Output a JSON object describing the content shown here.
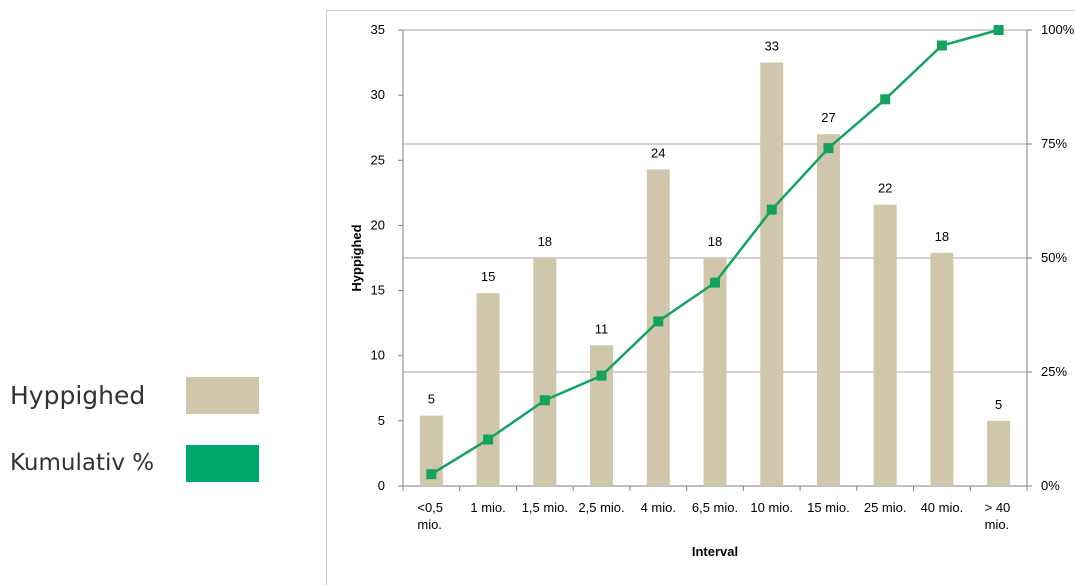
{
  "legend": {
    "bar_label": "Hyppighed",
    "line_label": "Kumulativ %",
    "bar_color": "#cfc6ab",
    "line_color": "#00a86b"
  },
  "chart_data": {
    "type": "bar",
    "categories": [
      [
        "<0,5",
        "mio."
      ],
      [
        "1 mio."
      ],
      [
        "1,5 mio."
      ],
      [
        "2,5 mio."
      ],
      [
        "4 mio."
      ],
      [
        "6,5 mio."
      ],
      [
        "10 mio."
      ],
      [
        "15 mio."
      ],
      [
        "25 mio."
      ],
      [
        "40 mio."
      ],
      [
        "> 40",
        "mio."
      ]
    ],
    "series": [
      {
        "name": "Hyppighed",
        "type": "bar",
        "axis": "left",
        "values": [
          5.4,
          14.8,
          17.5,
          10.8,
          24.3,
          17.5,
          32.5,
          27.0,
          21.6,
          17.9,
          5.0
        ],
        "labels": [
          "5",
          "15",
          "18",
          "11",
          "24",
          "18",
          "33",
          "27",
          "22",
          "18",
          "5"
        ]
      },
      {
        "name": "Kumulativ %",
        "type": "line",
        "axis": "right",
        "values": [
          2.6,
          10.2,
          18.8,
          24.2,
          36.1,
          44.6,
          60.6,
          74.1,
          84.8,
          96.6,
          100
        ]
      }
    ],
    "xlabel": "Interval",
    "ylabel": "Hyppighed",
    "ylim": [
      0,
      35
    ],
    "yticks": [
      "0",
      "5",
      "10",
      "15",
      "20",
      "25",
      "30",
      "35"
    ],
    "y2lim": [
      0,
      100
    ],
    "y2ticks": [
      "0%",
      "25%",
      "50%",
      "75%",
      "100%"
    ],
    "gridlines_right_axis": true,
    "colors": {
      "bar": "#cfc6ab",
      "line": "#13a35f",
      "marker": "#13a35f",
      "grid": "#a6a6a6"
    }
  }
}
